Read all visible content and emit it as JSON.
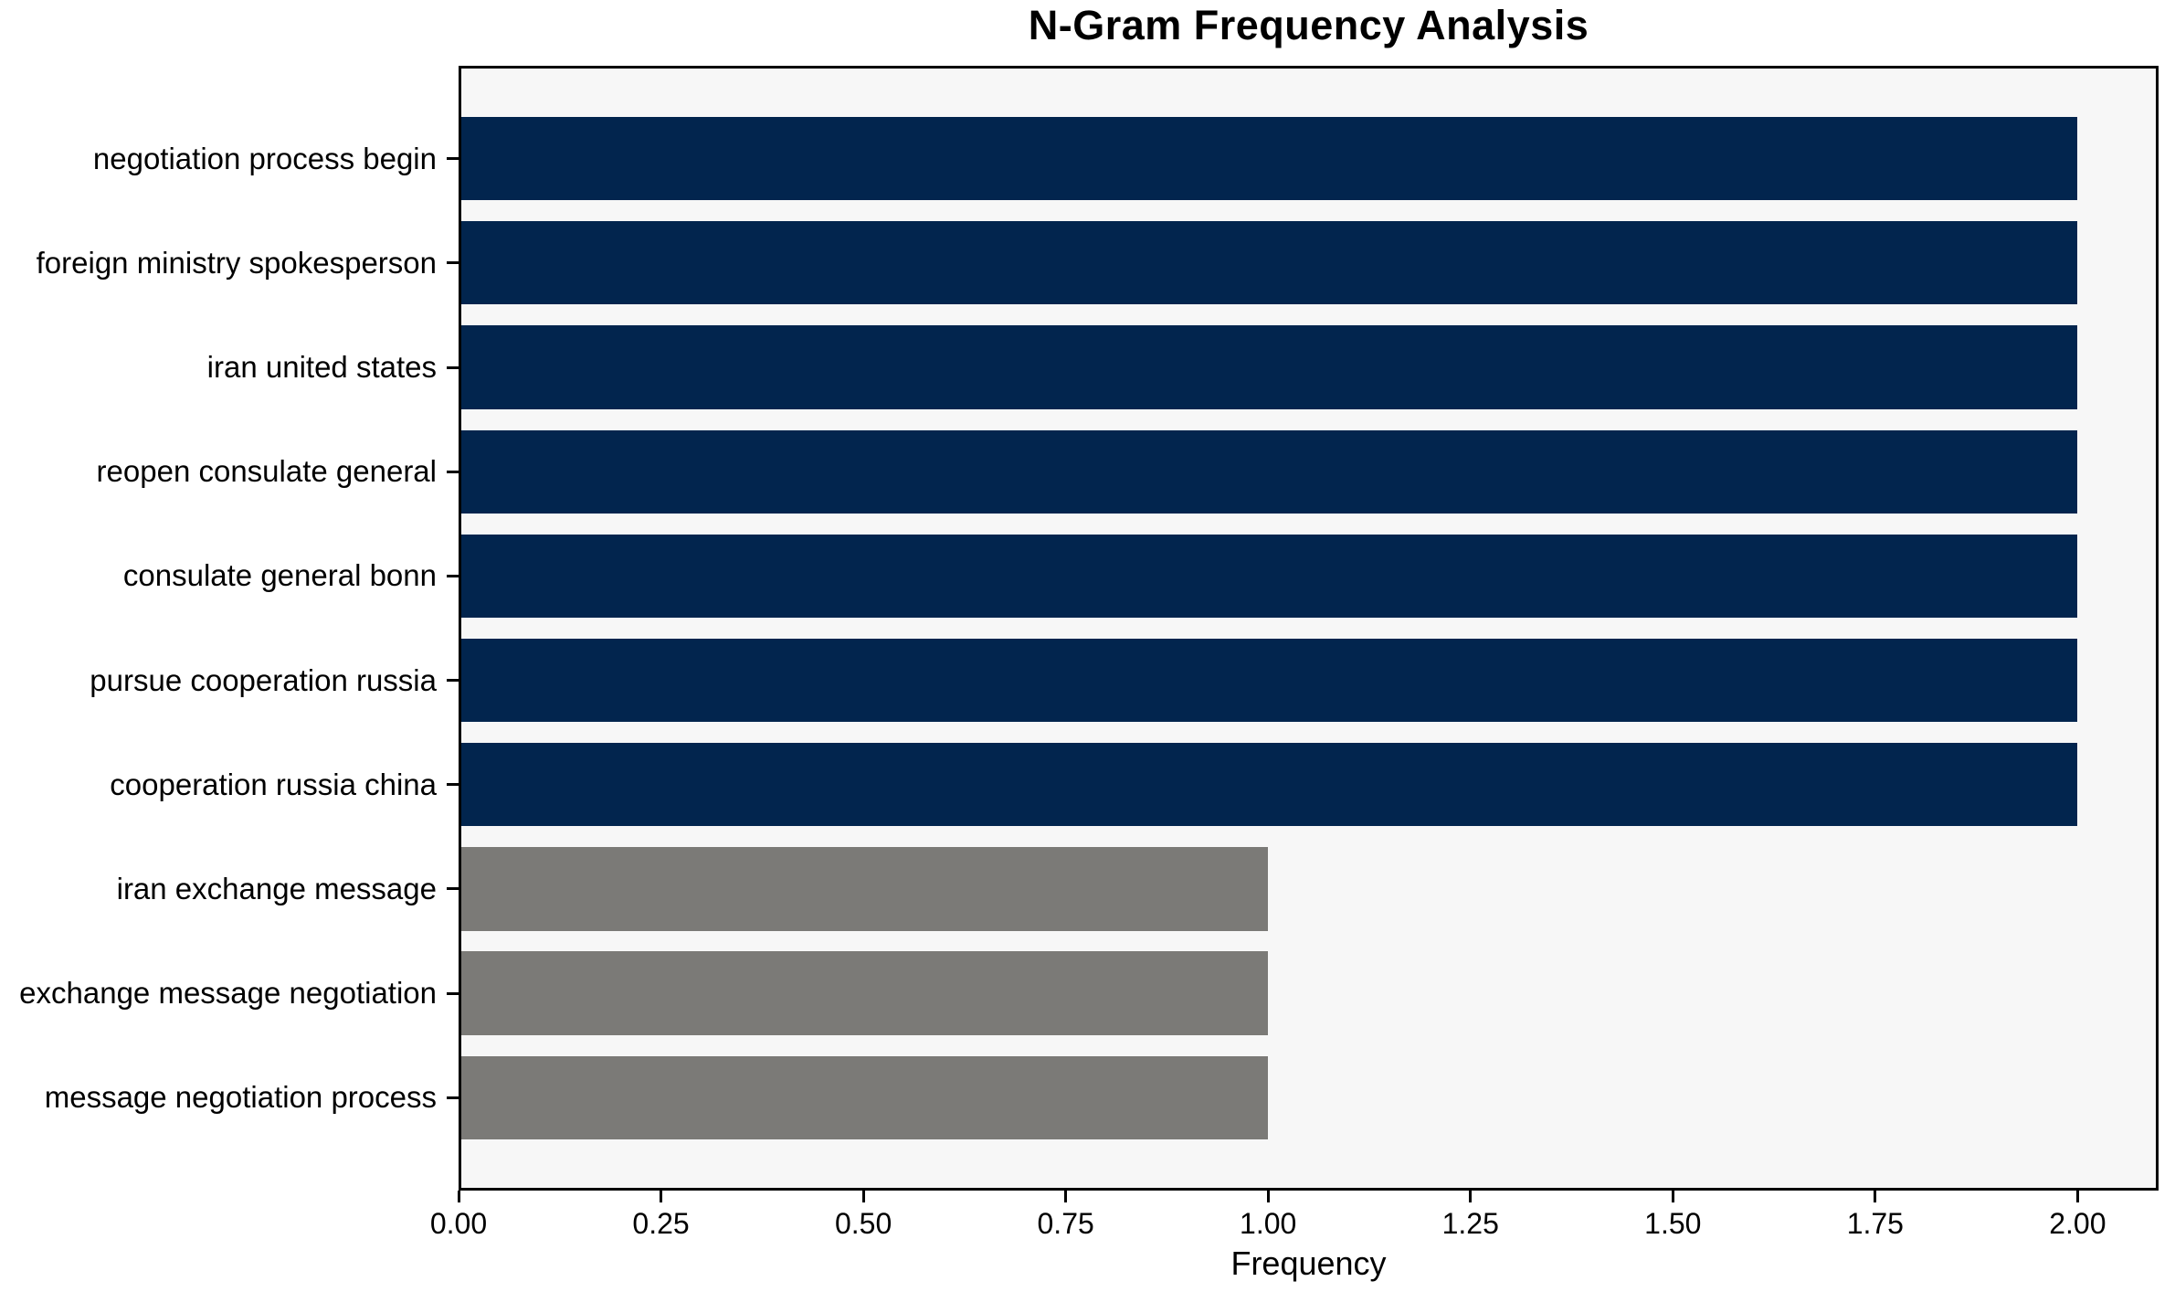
{
  "chart_data": {
    "type": "bar",
    "orientation": "horizontal",
    "title": "N-Gram Frequency Analysis",
    "xlabel": "Frequency",
    "ylabel": "",
    "categories": [
      "negotiation process begin",
      "foreign ministry spokesperson",
      "iran united states",
      "reopen consulate general",
      "consulate general bonn",
      "pursue cooperation russia",
      "cooperation russia china",
      "iran exchange message",
      "exchange message negotiation",
      "message negotiation process"
    ],
    "values": [
      2,
      2,
      2,
      2,
      2,
      2,
      2,
      1,
      1,
      1
    ],
    "bar_colors": [
      "#02254e",
      "#02254e",
      "#02254e",
      "#02254e",
      "#02254e",
      "#02254e",
      "#02254e",
      "#7b7a77",
      "#7b7a77",
      "#7b7a77"
    ],
    "xlim": [
      0,
      2.1
    ],
    "xticks": [
      {
        "value": 0.0,
        "label": "0.00"
      },
      {
        "value": 0.25,
        "label": "0.25"
      },
      {
        "value": 0.5,
        "label": "0.50"
      },
      {
        "value": 0.75,
        "label": "0.75"
      },
      {
        "value": 1.0,
        "label": "1.00"
      },
      {
        "value": 1.25,
        "label": "1.25"
      },
      {
        "value": 1.5,
        "label": "1.50"
      },
      {
        "value": 1.75,
        "label": "1.75"
      },
      {
        "value": 2.0,
        "label": "2.00"
      }
    ],
    "grid": false,
    "legend_position": "none",
    "plot_background": "#f7f7f7",
    "spine_color": "#000000",
    "colors": {
      "high_frequency_bar": "#02254e",
      "low_frequency_bar": "#7b7a77"
    }
  }
}
